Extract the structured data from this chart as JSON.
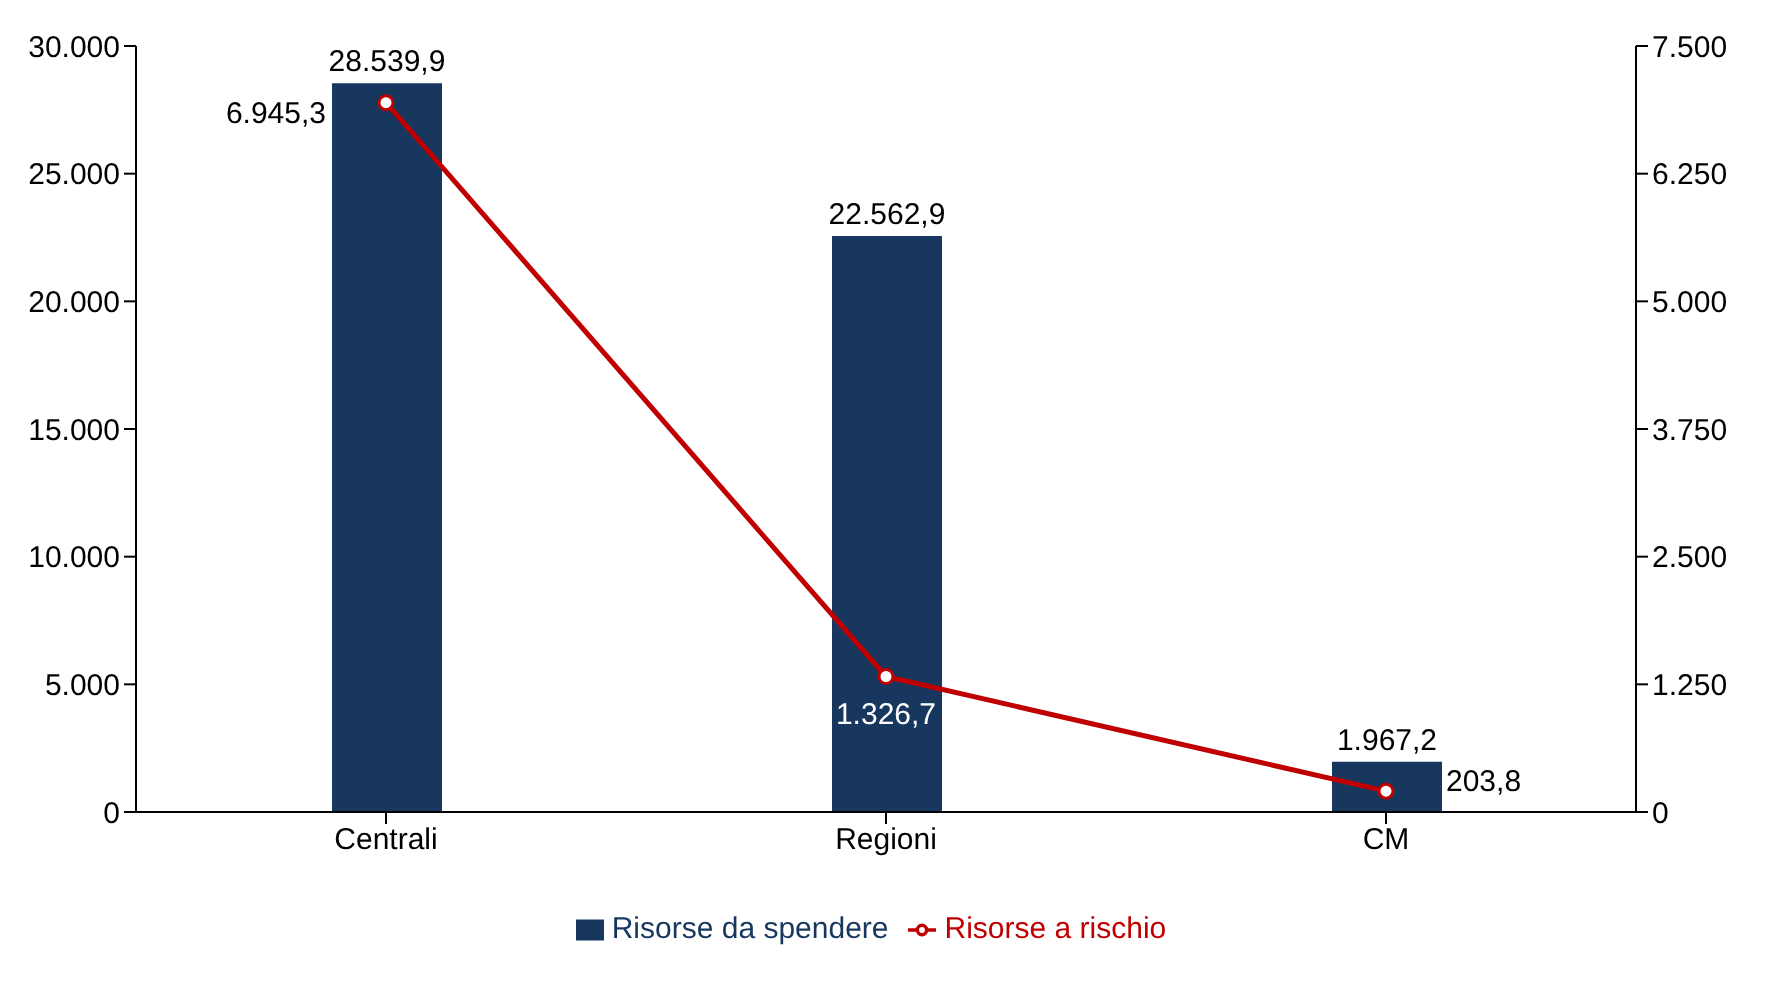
{
  "chart_data": {
    "type": "bar",
    "categories": [
      "Centrali",
      "Regioni",
      "CM"
    ],
    "series": [
      {
        "name": "Risorse da spendere",
        "color": "#17375e",
        "values": [
          28539.9,
          22562.9,
          1967.2
        ],
        "value_labels": [
          "28.539,9",
          "22.562,9",
          "1.967,2"
        ]
      },
      {
        "name": "Risorse a rischio",
        "type": "line",
        "axis": "y2",
        "color": "#c00000",
        "values": [
          6945.3,
          1326.7,
          203.8
        ],
        "value_labels": [
          "6.945,3",
          "1.326,7",
          "203,8"
        ]
      }
    ],
    "ylim": [
      0,
      30000
    ],
    "yticks": [
      {
        "value": 0,
        "label": "0"
      },
      {
        "value": 5000,
        "label": "5.000"
      },
      {
        "value": 10000,
        "label": "10.000"
      },
      {
        "value": 15000,
        "label": "15.000"
      },
      {
        "value": 20000,
        "label": "20.000"
      },
      {
        "value": 25000,
        "label": "25.000"
      },
      {
        "value": 30000,
        "label": "30.000"
      }
    ],
    "y2lim": [
      0,
      7500
    ],
    "y2ticks": [
      {
        "value": 0,
        "label": "0"
      },
      {
        "value": 1250,
        "label": "1.250"
      },
      {
        "value": 2500,
        "label": "2.500"
      },
      {
        "value": 3750,
        "label": "3.750"
      },
      {
        "value": 5000,
        "label": "5.000"
      },
      {
        "value": 6250,
        "label": "6.250"
      },
      {
        "value": 7500,
        "label": "7.500"
      }
    ],
    "marker": "circle",
    "legend": "bottom",
    "grid": false
  }
}
